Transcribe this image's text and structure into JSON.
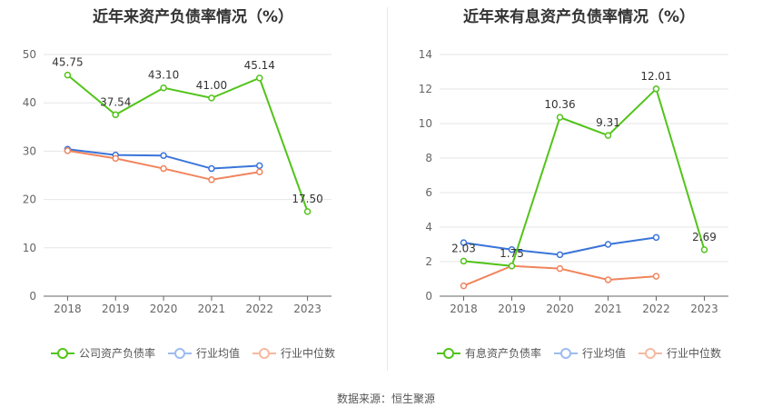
{
  "source_label": "数据来源：恒生聚源",
  "chart_data": [
    {
      "type": "line",
      "title": "近年来资产负债率情况（%）",
      "categories": [
        "2018",
        "2019",
        "2020",
        "2021",
        "2022",
        "2023"
      ],
      "ylim": [
        0,
        50
      ],
      "yticks": [
        0,
        10,
        20,
        30,
        40,
        50
      ],
      "grid": true,
      "legend_position": "bottom",
      "series": [
        {
          "name": "公司资产负债率",
          "color": "#52c41a",
          "values": [
            45.75,
            37.54,
            43.1,
            41.0,
            45.14,
            17.5
          ],
          "labels": [
            "45.75",
            "37.54",
            "43.10",
            "41.00",
            "45.14",
            "17.50"
          ]
        },
        {
          "name": "行业均值",
          "color": "#3a74d9",
          "values": [
            30.4,
            29.2,
            29.1,
            26.4,
            27.0,
            null
          ]
        },
        {
          "name": "行业中位数",
          "color": "#f0845d",
          "values": [
            30.1,
            28.5,
            26.4,
            24.1,
            25.7,
            null
          ]
        }
      ]
    },
    {
      "type": "line",
      "title": "近年来有息资产负债率情况（%）",
      "categories": [
        "2018",
        "2019",
        "2020",
        "2021",
        "2022",
        "2023"
      ],
      "ylim": [
        0,
        14
      ],
      "yticks": [
        0,
        2,
        4,
        6,
        8,
        10,
        12,
        14
      ],
      "grid": true,
      "legend_position": "bottom",
      "series": [
        {
          "name": "有息资产负债率",
          "color": "#52c41a",
          "values": [
            2.03,
            1.75,
            10.36,
            9.31,
            12.01,
            2.69
          ],
          "labels": [
            "2.03",
            "1.75",
            "10.36",
            "9.31",
            "12.01",
            "2.69"
          ]
        },
        {
          "name": "行业均值",
          "color": "#3a74d9",
          "values": [
            3.1,
            2.7,
            2.4,
            3.0,
            3.4,
            null
          ]
        },
        {
          "name": "行业中位数",
          "color": "#f0845d",
          "values": [
            0.6,
            1.75,
            1.6,
            0.95,
            1.15,
            null
          ]
        }
      ]
    }
  ]
}
